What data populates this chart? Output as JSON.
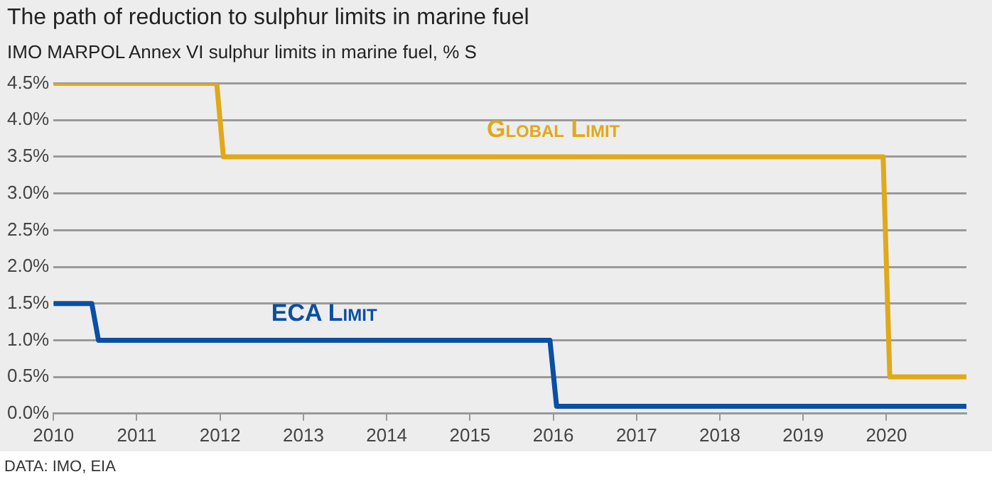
{
  "chart_data": {
    "type": "line",
    "title": "The path of reduction to sulphur limits in marine fuel",
    "subtitle": "IMO MARPOL Annex VI sulphur limits in marine fuel, % S",
    "annotations": [
      "DATA: IMO, EIA"
    ],
    "series": [
      {
        "name": "Global Limit",
        "color": "#e0a91a",
        "x": [
          2010,
          2011.96,
          2012.04,
          2019.96,
          2020.04,
          2020.96
        ],
        "values": [
          4.5,
          4.5,
          3.5,
          3.5,
          0.5,
          0.5
        ]
      },
      {
        "name": "ECA Limit",
        "color": "#0a4fa3",
        "x": [
          2010,
          2010.46,
          2010.54,
          2015.96,
          2016.04,
          2020.96
        ],
        "values": [
          1.5,
          1.5,
          1.0,
          1.0,
          0.1,
          0.1
        ]
      }
    ],
    "xlim": [
      2010,
      2020.96
    ],
    "xticks": [
      2010,
      2011,
      2012,
      2013,
      2014,
      2015,
      2016,
      2017,
      2018,
      2019,
      2020
    ],
    "ylim": [
      0,
      4.5
    ],
    "yticks": [
      {
        "value": 0,
        "label": "0.0%"
      },
      {
        "value": 0.5,
        "label": "0.5%"
      },
      {
        "value": 1,
        "label": "1.0%"
      },
      {
        "value": 1.5,
        "label": "1.5%"
      },
      {
        "value": 2,
        "label": "2.0%"
      },
      {
        "value": 2.5,
        "label": "2.5%"
      },
      {
        "value": 3,
        "label": "3.0%"
      },
      {
        "value": 3.5,
        "label": "3.5%"
      },
      {
        "value": 4,
        "label": "4.0%"
      },
      {
        "value": 4.5,
        "label": "4.5%"
      }
    ],
    "grid": "y",
    "legend": false,
    "marker": "none",
    "line_style": "solid"
  }
}
